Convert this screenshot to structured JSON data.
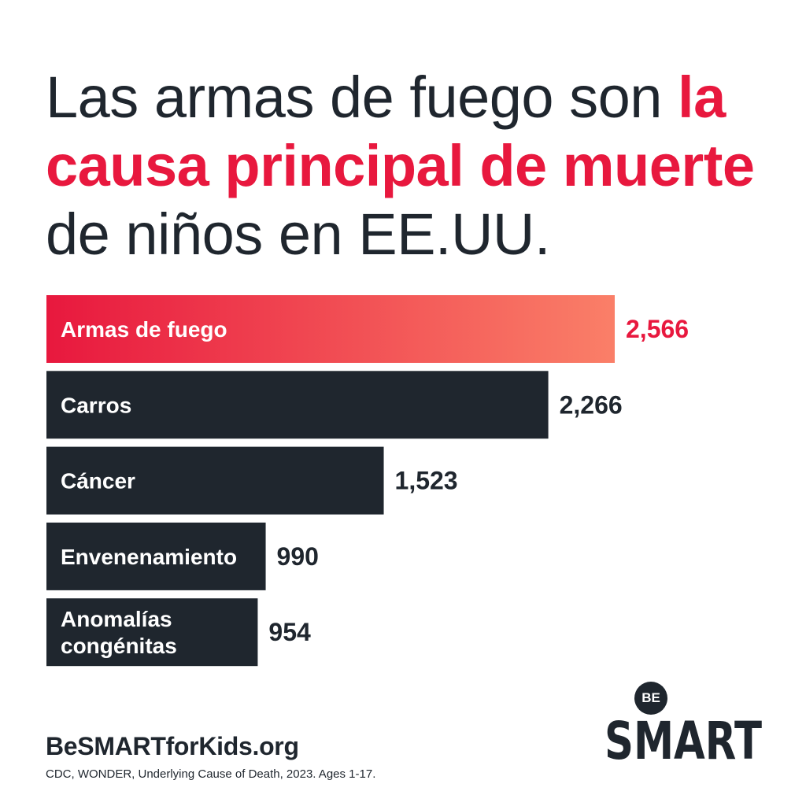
{
  "headline": {
    "part1": "Las armas de fuego son ",
    "highlight1": "la causa principal de muerte",
    "part2": " de niños en EE.UU."
  },
  "colors": {
    "dark": "#1f262e",
    "accent": "#e8183e",
    "gradient_start": "#e8183e",
    "gradient_end": "#fa7f68",
    "text_on_bar": "#ffffff"
  },
  "chart_data": {
    "type": "bar",
    "orientation": "horizontal",
    "title": "Las armas de fuego son la causa principal de muerte de niños en EE.UU.",
    "categories": [
      "Armas de fuego",
      "Carros",
      "Cáncer",
      "Envenenamiento",
      "Anomalías congénitas"
    ],
    "category_lines": [
      [
        "Armas de fuego"
      ],
      [
        "Carros"
      ],
      [
        "Cáncer"
      ],
      [
        "Envenenamiento"
      ],
      [
        "Anomalías",
        "congénitas"
      ]
    ],
    "values": [
      2566,
      2266,
      1523,
      990,
      954
    ],
    "value_labels": [
      "2,566",
      "2,266",
      "1,523",
      "990",
      "954"
    ],
    "highlight_index": 0,
    "xlabel": "",
    "ylabel": "",
    "grid": false,
    "legend": "none"
  },
  "footer": {
    "website": "BeSMARTforKids.org",
    "source": "CDC, WONDER, Underlying Cause of Death, 2023. Ages 1-17."
  },
  "logo": {
    "top": "BE",
    "bottom": "SMART"
  }
}
